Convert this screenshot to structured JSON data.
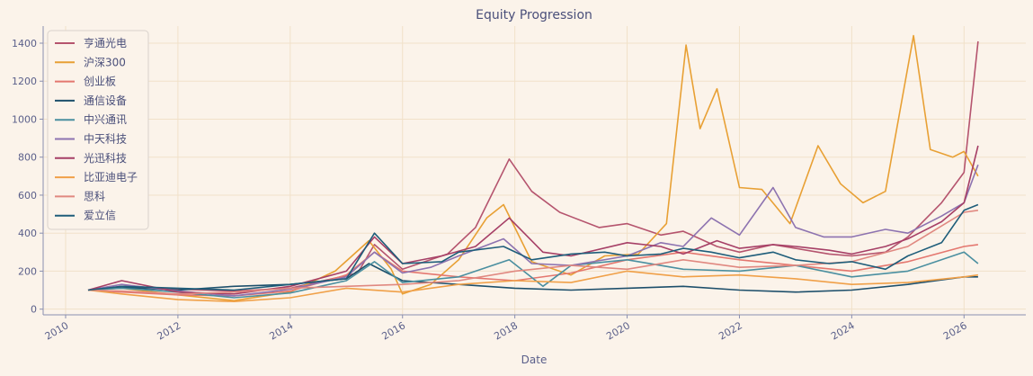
{
  "chart_data": {
    "type": "line",
    "title": "Equity Progression",
    "xlabel": "Date",
    "ylabel": "",
    "xlim": [
      2009.6,
      2027.1
    ],
    "ylim": [
      -30,
      1490
    ],
    "xticks": [
      "2010",
      "2012",
      "2014",
      "2016",
      "2018",
      "2020",
      "2022",
      "2024",
      "2026"
    ],
    "yticks": [
      0,
      200,
      400,
      600,
      800,
      1000,
      1200,
      1400
    ],
    "grid": true,
    "legend_position": "top-left",
    "series": [
      {
        "name": "亨通光电",
        "color": "#b5546e",
        "x": [
          2010.4,
          2011,
          2012,
          2013,
          2014,
          2015.2,
          2015.5,
          2016,
          2016.8,
          2017.3,
          2017.9,
          2018.3,
          2018.8,
          2019.5,
          2020,
          2020.6,
          2021,
          2021.6,
          2022,
          2022.6,
          2023,
          2023.6,
          2024,
          2024.6,
          2025,
          2025.6,
          2026,
          2026.25
        ],
        "values": [
          100,
          120,
          105,
          95,
          110,
          190,
          340,
          210,
          290,
          430,
          790,
          620,
          510,
          430,
          450,
          390,
          410,
          330,
          300,
          340,
          320,
          290,
          280,
          300,
          380,
          560,
          720,
          1410
        ]
      },
      {
        "name": "沪深300",
        "color": "#e8a034",
        "x": [
          2010.4,
          2011,
          2012,
          2013,
          2014,
          2014.8,
          2015.4,
          2015.8,
          2016,
          2016.5,
          2017,
          2017.5,
          2017.8,
          2018.3,
          2019,
          2019.6,
          2020.2,
          2020.7,
          2021.05,
          2021.3,
          2021.6,
          2022,
          2022.4,
          2022.9,
          2023.4,
          2023.8,
          2024.2,
          2024.6,
          2025.1,
          2025.4,
          2025.8,
          2026,
          2026.25
        ],
        "values": [
          100,
          110,
          75,
          45,
          90,
          200,
          360,
          210,
          80,
          130,
          260,
          480,
          550,
          250,
          180,
          280,
          290,
          450,
          1390,
          950,
          1160,
          640,
          630,
          450,
          860,
          660,
          560,
          620,
          1440,
          840,
          800,
          830,
          700
        ]
      },
      {
        "name": "创业板",
        "color": "#e4776f",
        "x": [
          2010.4,
          2011,
          2012,
          2013,
          2014,
          2015,
          2015.5,
          2016,
          2017,
          2018,
          2019,
          2020,
          2021,
          2022,
          2023,
          2024,
          2025,
          2026,
          2026.25
        ],
        "values": [
          100,
          90,
          75,
          70,
          95,
          180,
          300,
          200,
          170,
          150,
          190,
          260,
          300,
          260,
          230,
          200,
          250,
          330,
          340
        ]
      },
      {
        "name": "通信设备",
        "color": "#1d4f6b",
        "x": [
          2010.4,
          2011,
          2012,
          2013,
          2014,
          2015,
          2015.4,
          2016,
          2017,
          2018,
          2019,
          2020,
          2021,
          2022,
          2023,
          2024,
          2025,
          2026,
          2026.25
        ],
        "values": [
          100,
          115,
          100,
          120,
          130,
          160,
          240,
          150,
          130,
          110,
          100,
          110,
          120,
          100,
          90,
          100,
          130,
          170,
          170
        ]
      },
      {
        "name": "中兴通讯",
        "color": "#4a8fa0",
        "x": [
          2010.4,
          2011,
          2012,
          2013,
          2014,
          2015,
          2015.5,
          2016,
          2017,
          2017.9,
          2018.5,
          2019,
          2020,
          2021,
          2022,
          2023,
          2024,
          2025,
          2026,
          2026.25
        ],
        "values": [
          100,
          110,
          90,
          60,
          85,
          150,
          250,
          140,
          170,
          260,
          120,
          230,
          260,
          210,
          200,
          230,
          170,
          200,
          300,
          240
        ]
      },
      {
        "name": "中天科技",
        "color": "#8d73b0",
        "x": [
          2010.4,
          2011,
          2012,
          2013,
          2014,
          2015,
          2015.5,
          2016,
          2016.5,
          2017,
          2017.8,
          2018.3,
          2019,
          2020,
          2020.6,
          2021,
          2021.5,
          2022,
          2022.6,
          2023,
          2023.5,
          2024,
          2024.6,
          2025,
          2025.6,
          2026,
          2026.25
        ],
        "values": [
          100,
          130,
          95,
          70,
          105,
          170,
          300,
          190,
          220,
          280,
          370,
          240,
          230,
          280,
          350,
          330,
          480,
          390,
          640,
          430,
          380,
          380,
          420,
          400,
          490,
          560,
          760
        ]
      },
      {
        "name": "光迅科技",
        "color": "#a63f66",
        "x": [
          2010.4,
          2011,
          2012,
          2013,
          2014,
          2015,
          2015.5,
          2016,
          2016.7,
          2017.3,
          2017.9,
          2018.5,
          2019,
          2020,
          2020.6,
          2021,
          2021.6,
          2022,
          2022.6,
          2023,
          2023.6,
          2024,
          2024.6,
          2025,
          2025.6,
          2026,
          2026.25
        ],
        "values": [
          100,
          150,
          90,
          80,
          120,
          200,
          380,
          240,
          280,
          330,
          480,
          300,
          280,
          350,
          330,
          290,
          360,
          320,
          340,
          330,
          310,
          290,
          330,
          370,
          460,
          560,
          860
        ]
      },
      {
        "name": "比亚迪电子",
        "color": "#f0a048",
        "x": [
          2010.4,
          2011,
          2012,
          2013,
          2014,
          2015,
          2016,
          2017,
          2018,
          2019,
          2020,
          2021,
          2022,
          2023,
          2024,
          2025,
          2026,
          2026.25
        ],
        "values": [
          100,
          80,
          50,
          40,
          60,
          110,
          90,
          130,
          150,
          140,
          200,
          170,
          180,
          160,
          130,
          140,
          170,
          180
        ]
      },
      {
        "name": "思科",
        "color": "#e08880",
        "x": [
          2010.4,
          2011,
          2012,
          2013,
          2014,
          2015,
          2016,
          2017,
          2018,
          2019,
          2020,
          2021,
          2022,
          2023,
          2024,
          2025,
          2026,
          2026.25
        ],
        "values": [
          100,
          95,
          80,
          90,
          110,
          120,
          130,
          150,
          200,
          230,
          210,
          260,
          220,
          230,
          250,
          330,
          510,
          520
        ]
      },
      {
        "name": "爱立信",
        "color": "#1e5d7a",
        "x": [
          2010.4,
          2011,
          2012,
          2013,
          2014,
          2015,
          2015.5,
          2016,
          2016.7,
          2017,
          2017.8,
          2018.3,
          2019,
          2019.6,
          2020,
          2020.6,
          2021,
          2021.5,
          2022,
          2022.6,
          2023,
          2023.6,
          2024,
          2024.6,
          2025,
          2025.6,
          2026,
          2026.25
        ],
        "values": [
          100,
          120,
          110,
          100,
          130,
          160,
          400,
          240,
          250,
          300,
          330,
          260,
          290,
          300,
          280,
          290,
          320,
          300,
          270,
          300,
          260,
          240,
          250,
          210,
          280,
          350,
          520,
          550
        ]
      }
    ]
  }
}
